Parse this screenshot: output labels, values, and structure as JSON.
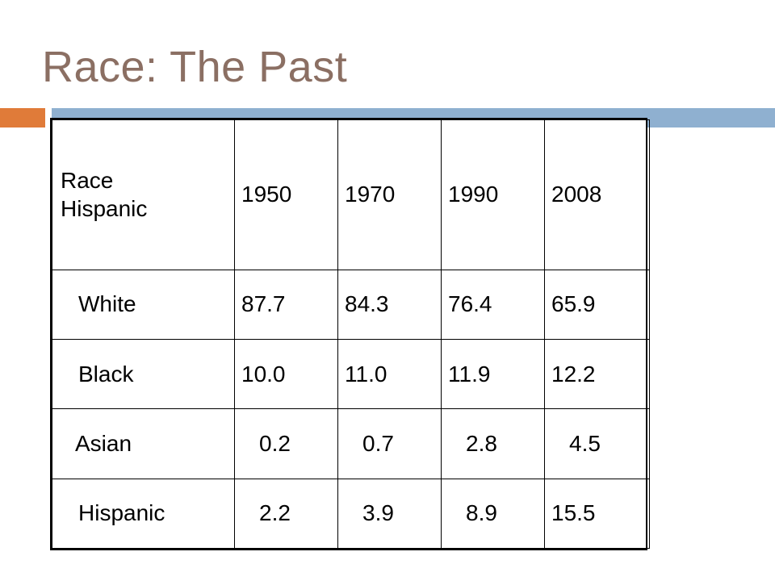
{
  "slide": {
    "title": "Race: The Past"
  },
  "table": {
    "header": {
      "label_line1": "Race",
      "label_line2": "Hispanic",
      "years": [
        "1950",
        "1970",
        "1990",
        "2008"
      ]
    },
    "rows": [
      {
        "label": "White",
        "values": [
          "87.7",
          "84.3",
          "76.4",
          "65.9"
        ]
      },
      {
        "label": "Black",
        "values": [
          "10.0",
          "11.0",
          "11.9",
          "12.2"
        ]
      },
      {
        "label": "Asian",
        "values": [
          "0.2",
          "0.7",
          "2.8",
          "4.5"
        ]
      },
      {
        "label": "Hispanic",
        "values": [
          "2.2",
          "3.9",
          "8.9",
          "15.5"
        ]
      }
    ]
  },
  "colors": {
    "title": "#8b6f63",
    "accent_orange": "#e07b39",
    "accent_blue": "#8fb0d0"
  }
}
